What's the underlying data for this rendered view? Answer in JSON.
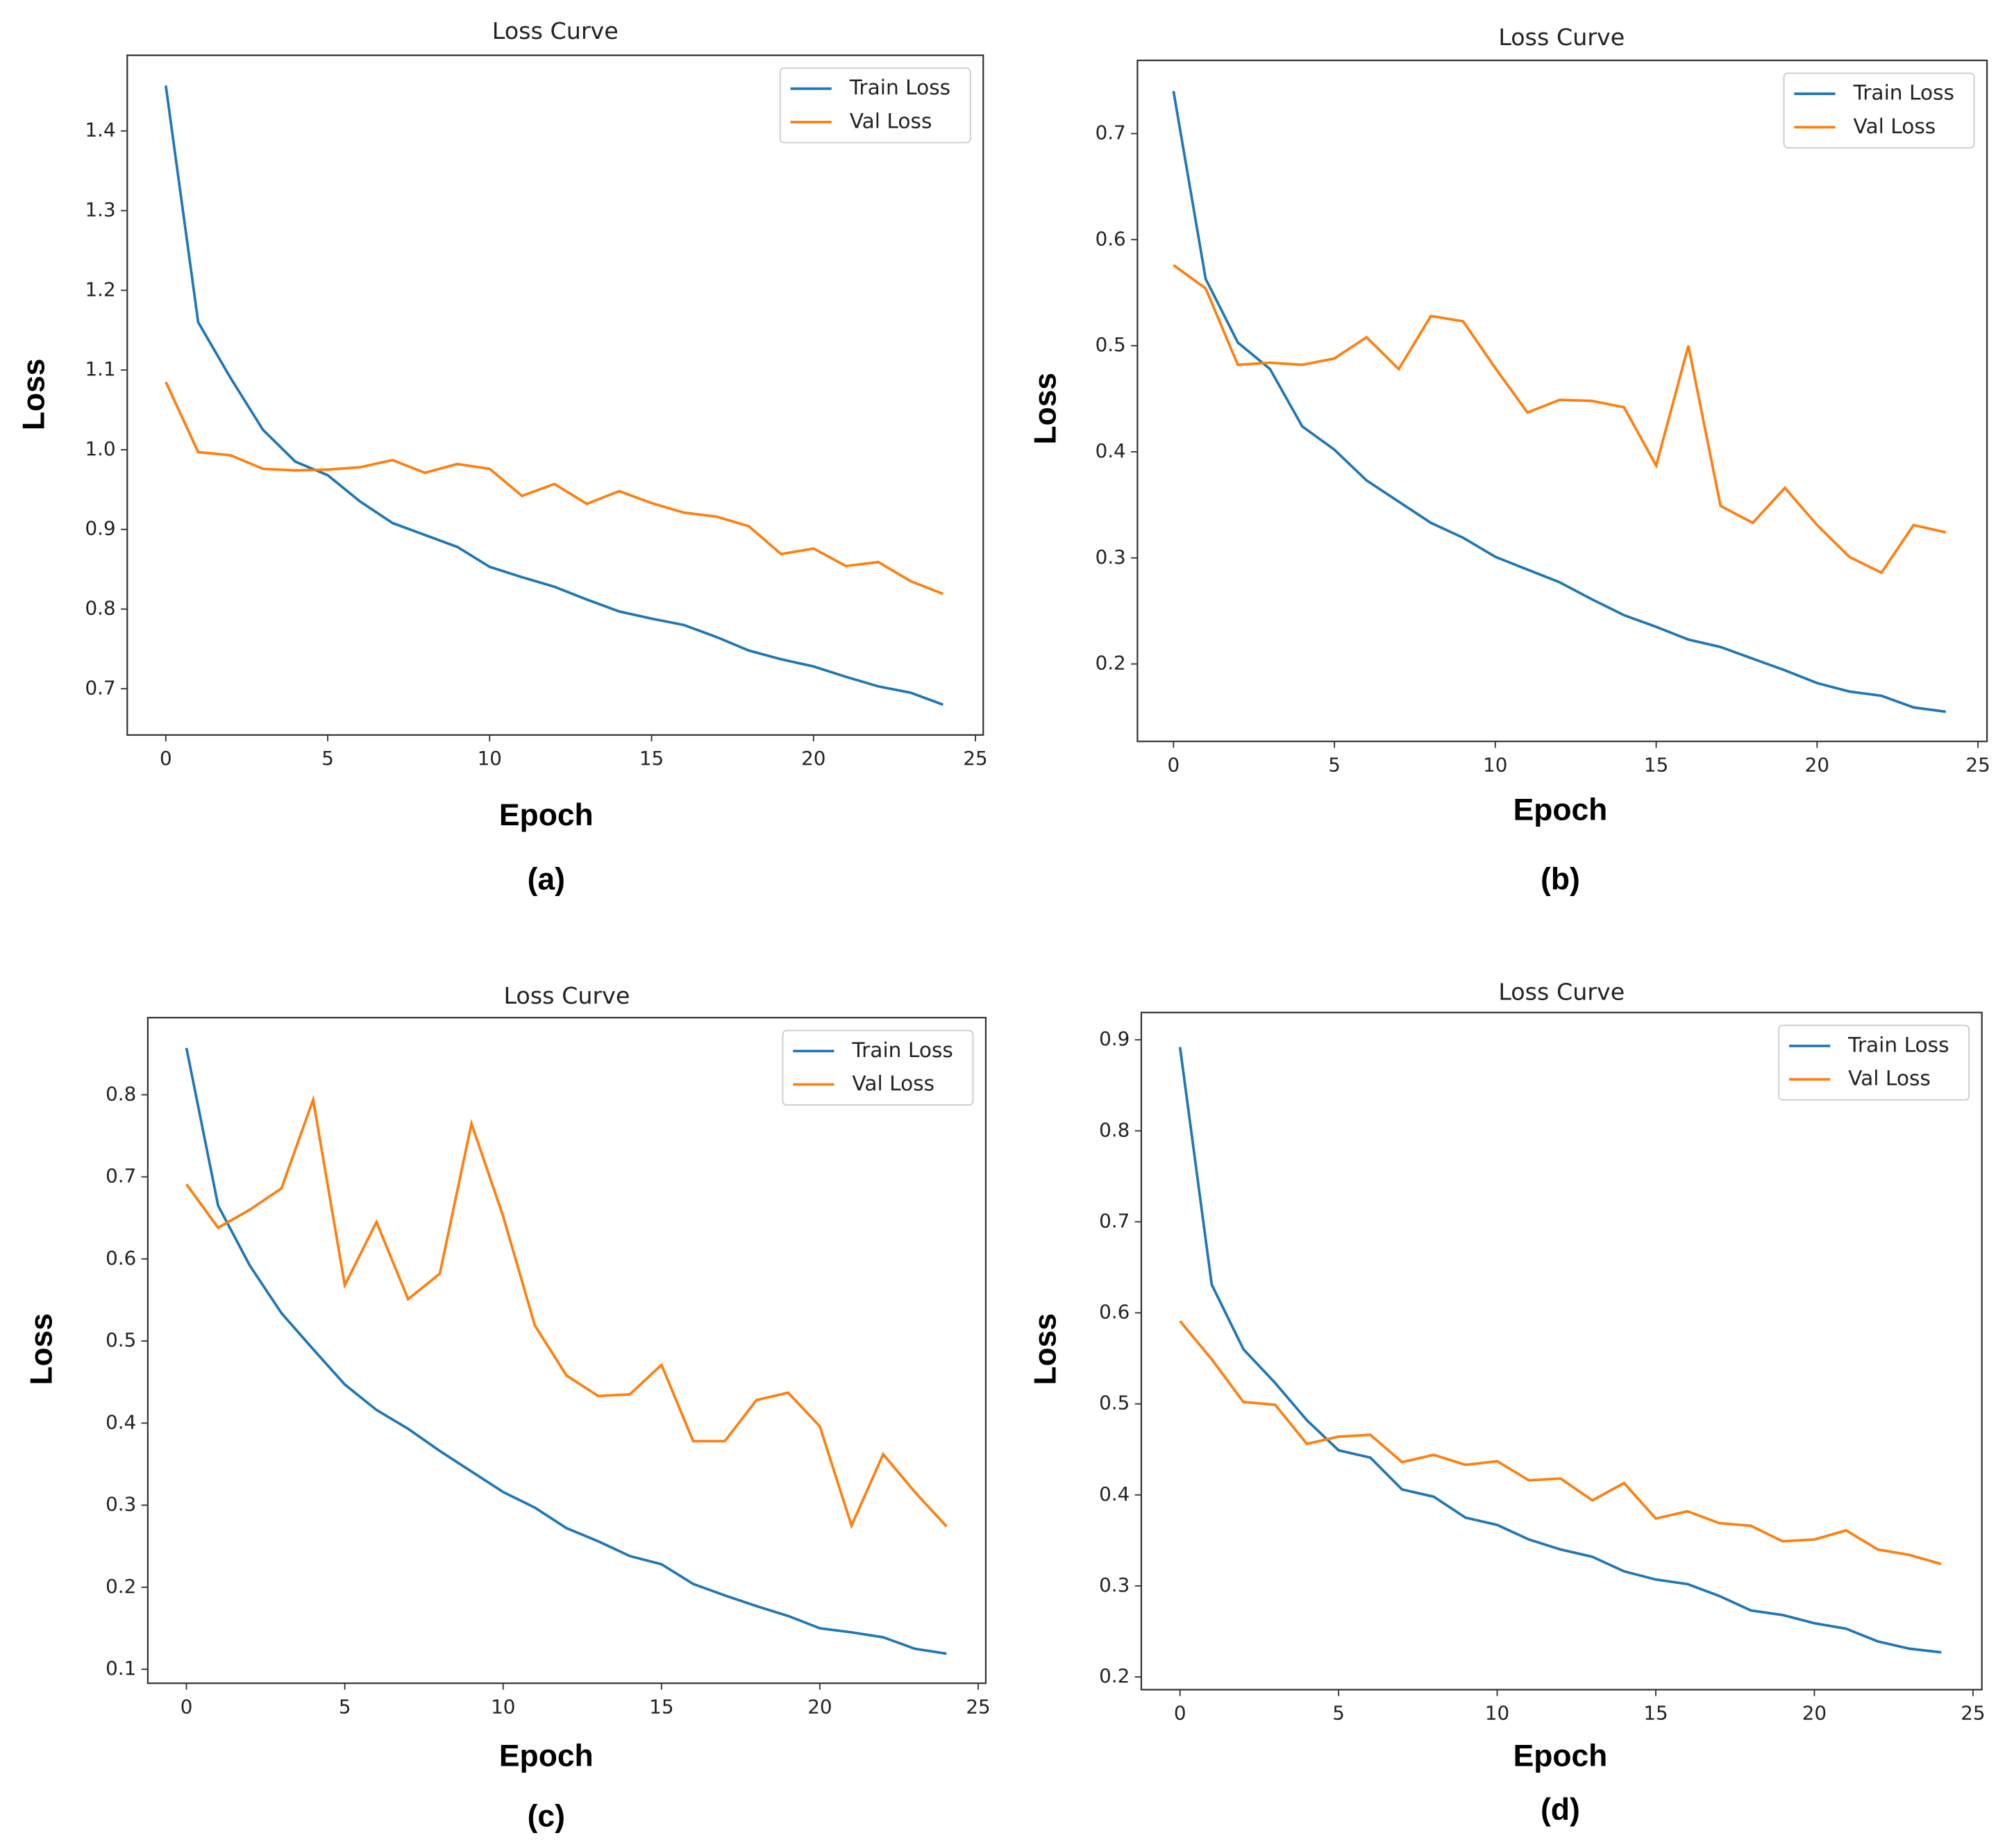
{
  "chart_data": [
    {
      "type": "line",
      "title": "Loss Curve",
      "xlabel": "Epoch",
      "ylabel": "Loss",
      "caption": "(a)",
      "legend": "upper right",
      "x": [
        0,
        1,
        2,
        3,
        4,
        5,
        6,
        7,
        8,
        9,
        10,
        11,
        12,
        13,
        14,
        15,
        16,
        17,
        18,
        19,
        20,
        21,
        22,
        23,
        24
      ],
      "series": [
        {
          "name": "Train Loss",
          "color": "#1f77b4",
          "values": [
            1.457,
            1.16,
            1.09,
            1.025,
            0.985,
            0.968,
            0.935,
            0.908,
            0.893,
            0.878,
            0.853,
            0.84,
            0.828,
            0.812,
            0.797,
            0.788,
            0.78,
            0.765,
            0.748,
            0.737,
            0.728,
            0.715,
            0.703,
            0.695,
            0.68
          ]
        },
        {
          "name": "Val Loss",
          "color": "#ff7f0e",
          "values": [
            1.085,
            0.997,
            0.993,
            0.976,
            0.974,
            0.975,
            0.978,
            0.987,
            0.971,
            0.982,
            0.976,
            0.942,
            0.957,
            0.932,
            0.948,
            0.933,
            0.921,
            0.916,
            0.904,
            0.869,
            0.876,
            0.854,
            0.859,
            0.835,
            0.819
          ]
        }
      ],
      "xlim": [
        -1.19,
        25.24
      ],
      "ylim": [
        0.642,
        1.495
      ],
      "xticks": [
        0,
        5,
        10,
        15,
        20,
        25
      ],
      "yticks": [
        0.7,
        0.8,
        0.9,
        {
          "value": 1,
          "label": "1.0"
        },
        1.1,
        1.2,
        1.3,
        1.4
      ]
    },
    {
      "type": "line",
      "title": "Loss Curve",
      "xlabel": "Epoch",
      "ylabel": "Loss",
      "caption": "(b)",
      "legend": "upper right",
      "x": [
        0,
        1,
        2,
        3,
        4,
        5,
        6,
        7,
        8,
        9,
        10,
        11,
        12,
        13,
        14,
        15,
        16,
        17,
        18,
        19,
        20,
        21,
        22,
        23,
        24
      ],
      "series": [
        {
          "name": "Train Loss",
          "color": "#1f77b4",
          "values": [
            0.74,
            0.563,
            0.503,
            0.478,
            0.424,
            0.402,
            0.373,
            0.353,
            0.333,
            0.319,
            0.301,
            0.289,
            0.277,
            0.261,
            0.246,
            0.235,
            0.223,
            0.216,
            0.205,
            0.194,
            0.182,
            0.174,
            0.17,
            0.159,
            0.155
          ]
        },
        {
          "name": "Val Loss",
          "color": "#ff7f0e",
          "values": [
            0.576,
            0.554,
            0.482,
            0.484,
            0.482,
            0.488,
            0.508,
            0.478,
            0.528,
            0.523,
            0.479,
            0.437,
            0.449,
            0.448,
            0.442,
            0.387,
            0.5,
            0.349,
            0.333,
            0.366,
            0.331,
            0.301,
            0.286,
            0.331,
            0.324
          ]
        }
      ],
      "xlim": [
        -1.12,
        25.28
      ],
      "ylim": [
        0.127,
        0.769
      ],
      "xticks": [
        0,
        5,
        10,
        15,
        20,
        25
      ],
      "yticks": [
        0.2,
        0.3,
        0.4,
        0.5,
        0.6,
        0.7
      ]
    },
    {
      "type": "line",
      "title": "Loss Curve",
      "xlabel": "Epoch",
      "ylabel": "Loss",
      "caption": "(c)",
      "legend": "upper right",
      "x": [
        0,
        1,
        2,
        3,
        4,
        5,
        6,
        7,
        8,
        9,
        10,
        11,
        12,
        13,
        14,
        15,
        16,
        17,
        18,
        19,
        20,
        21,
        22,
        23,
        24
      ],
      "series": [
        {
          "name": "Train Loss",
          "color": "#1f77b4",
          "values": [
            0.857,
            0.665,
            0.592,
            0.534,
            0.49,
            0.447,
            0.416,
            0.393,
            0.366,
            0.341,
            0.316,
            0.297,
            0.272,
            0.256,
            0.238,
            0.228,
            0.204,
            0.19,
            0.177,
            0.165,
            0.15,
            0.145,
            0.139,
            0.125,
            0.119
          ]
        },
        {
          "name": "Val Loss",
          "color": "#ff7f0e",
          "values": [
            0.691,
            0.638,
            0.66,
            0.686,
            0.794,
            0.568,
            0.645,
            0.551,
            0.582,
            0.765,
            0.652,
            0.519,
            0.458,
            0.433,
            0.435,
            0.471,
            0.378,
            0.378,
            0.428,
            0.437,
            0.396,
            0.275,
            0.362,
            0.316,
            0.274
          ]
        }
      ],
      "xlim": [
        -1.22,
        25.24
      ],
      "ylim": [
        0.083,
        0.894
      ],
      "xticks": [
        0,
        5,
        10,
        15,
        20,
        25
      ],
      "yticks": [
        0.1,
        0.2,
        0.3,
        0.4,
        0.5,
        0.6,
        0.7,
        0.8
      ]
    },
    {
      "type": "line",
      "title": "Loss Curve",
      "xlabel": "Epoch",
      "ylabel": "Loss",
      "caption": "(d)",
      "legend": "upper right",
      "x": [
        0,
        1,
        2,
        3,
        4,
        5,
        6,
        7,
        8,
        9,
        10,
        11,
        12,
        13,
        14,
        15,
        16,
        17,
        18,
        19,
        20,
        21,
        22,
        23,
        24
      ],
      "series": [
        {
          "name": "Train Loss",
          "color": "#1f77b4",
          "values": [
            0.892,
            0.631,
            0.56,
            0.523,
            0.482,
            0.449,
            0.441,
            0.406,
            0.398,
            0.375,
            0.367,
            0.351,
            0.34,
            0.332,
            0.316,
            0.307,
            0.302,
            0.289,
            0.273,
            0.268,
            0.259,
            0.253,
            0.239,
            0.231,
            0.227
          ]
        },
        {
          "name": "Val Loss",
          "color": "#ff7f0e",
          "values": [
            0.591,
            0.549,
            0.502,
            0.499,
            0.456,
            0.464,
            0.466,
            0.436,
            0.444,
            0.433,
            0.437,
            0.416,
            0.418,
            0.394,
            0.413,
            0.374,
            0.382,
            0.369,
            0.366,
            0.349,
            0.351,
            0.361,
            0.34,
            0.334,
            0.324
          ]
        }
      ],
      "xlim": [
        -1.22,
        25.28
      ],
      "ylim": [
        0.186,
        0.93
      ],
      "xticks": [
        0,
        5,
        10,
        15,
        20,
        25
      ],
      "yticks": [
        0.2,
        0.3,
        0.4,
        0.5,
        0.6,
        0.7,
        0.8,
        0.9
      ]
    }
  ]
}
